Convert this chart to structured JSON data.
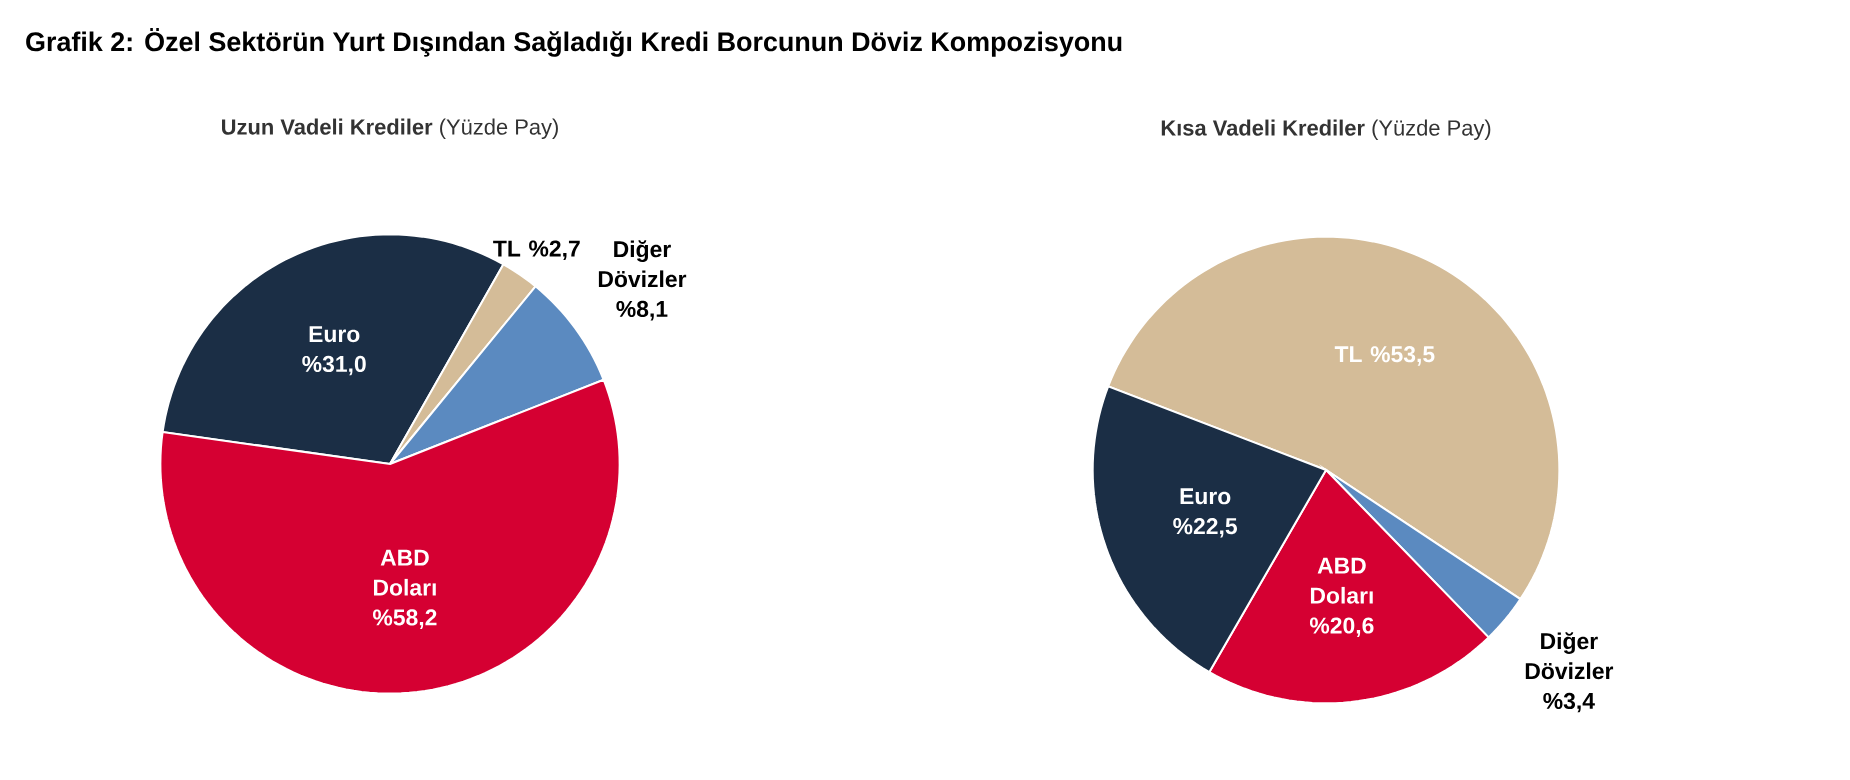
{
  "chart_data": [
    {
      "type": "pie",
      "title": "**Uzun Vadeli Krediler** (Yüzde Pay)",
      "annotations": [
        "**Grafik 2: Özel Sektörün Yurt Dışından Sağladığı Kredi Borcunun Döviz Kompozisyonu**"
      ],
      "categories": [
        "Euro",
        "TL",
        "Diğer Dövizler",
        "ABD Doları"
      ],
      "values": [
        31.0,
        2.7,
        8.1,
        58.2
      ],
      "colors": [
        "#1b2e45",
        "#d4bc98",
        "#5b8ac0",
        "#d50032"
      ],
      "value_labels": [
        "%31,0",
        "%2,7",
        "%8,1",
        "%58,2"
      ]
    },
    {
      "type": "pie",
      "title": "**Kısa Vadeli Krediler** (Yüzde Pay)",
      "categories": [
        "TL",
        "Diğer Dövizler",
        "ABD Doları",
        "Euro"
      ],
      "values": [
        53.5,
        3.4,
        20.6,
        22.5
      ],
      "colors": [
        "#d4bc98",
        "#5b8ac0",
        "#d50032",
        "#1b2e45"
      ],
      "value_labels": [
        "%53,5",
        "%3,4",
        "%20,6",
        "%22,5"
      ]
    }
  ]
}
